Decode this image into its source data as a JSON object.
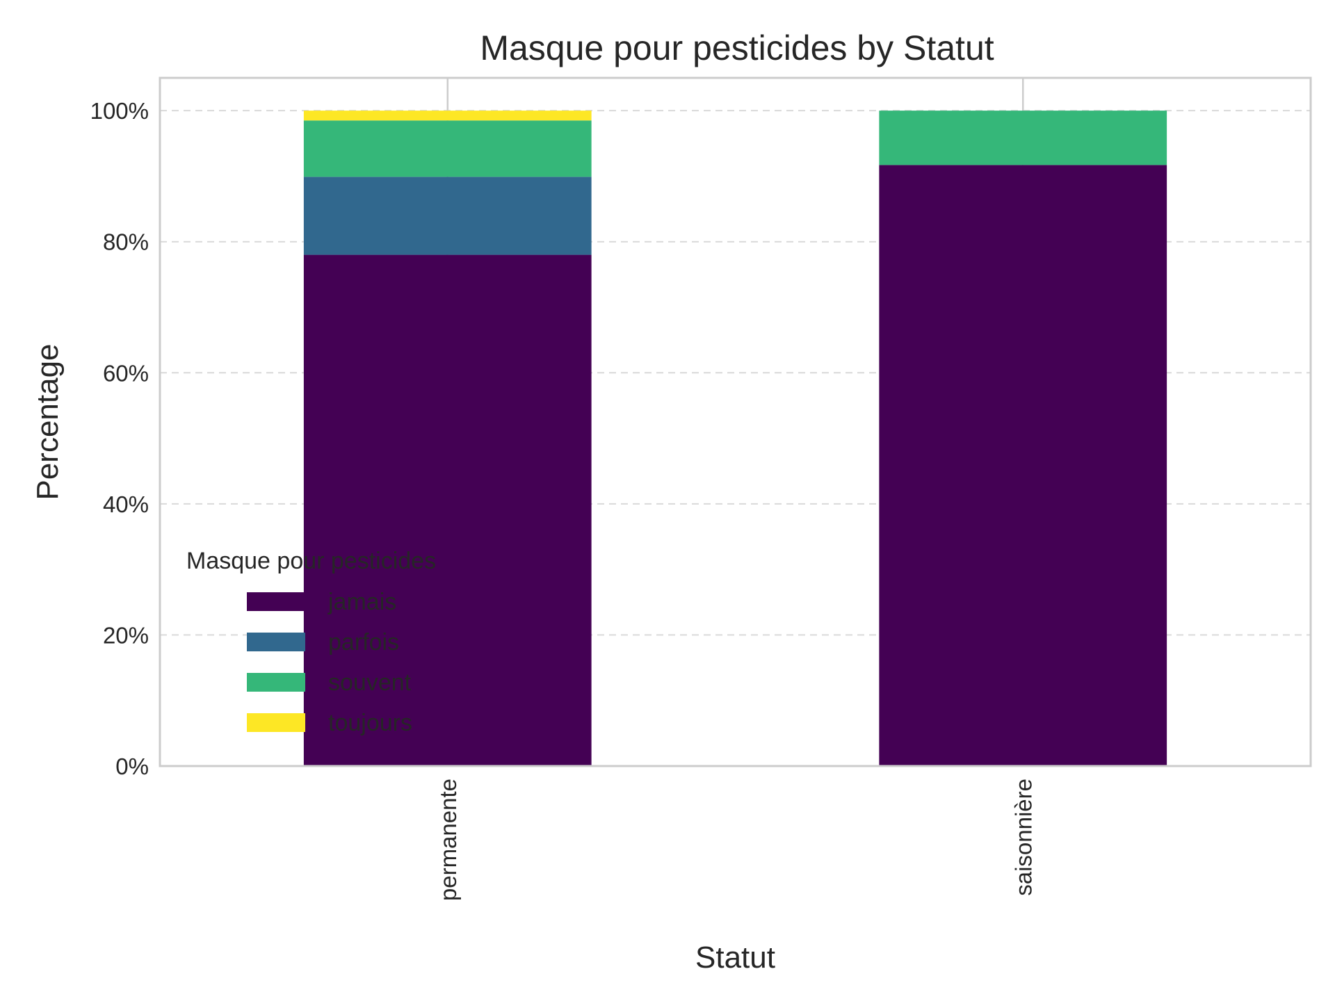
{
  "chart_data": {
    "type": "bar",
    "stacked": true,
    "title": "Masque pour pesticides by Statut",
    "xlabel": "Statut",
    "ylabel": "Percentage",
    "categories": [
      "permanente",
      "saisonnière"
    ],
    "series": [
      {
        "name": "jamais",
        "values": [
          78.0,
          91.7
        ],
        "color": "#440154"
      },
      {
        "name": "parfois",
        "values": [
          11.9,
          0.0
        ],
        "color": "#31688e"
      },
      {
        "name": "souvent",
        "values": [
          8.6,
          8.3
        ],
        "color": "#35b779"
      },
      {
        "name": "toujours",
        "values": [
          1.5,
          0.0
        ],
        "color": "#fde725"
      }
    ],
    "ylim": [
      0,
      105
    ],
    "yticks": [
      0,
      20,
      40,
      60,
      80,
      100
    ],
    "ytick_labels": [
      "0%",
      "20%",
      "40%",
      "60%",
      "80%",
      "100%"
    ],
    "grid": true,
    "legend": {
      "title": "Masque pour pesticides",
      "placement": "lower-left"
    }
  }
}
